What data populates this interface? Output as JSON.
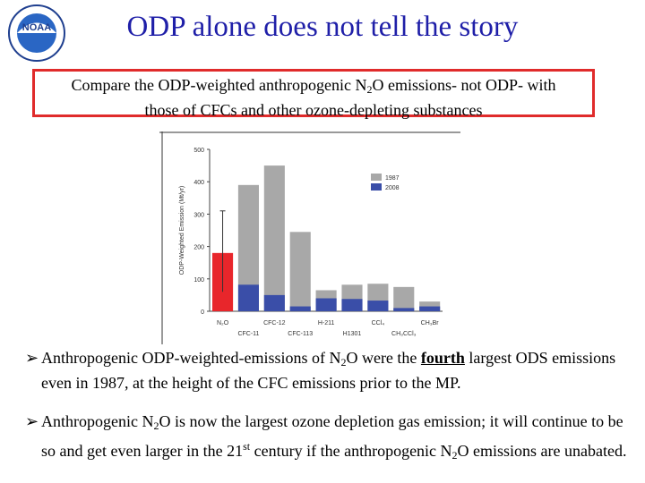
{
  "logo": {
    "text": "NOAA"
  },
  "title": "ODP alone does not tell the story",
  "callout": {
    "part1": "Compare the ODP-weighted anthropogenic N",
    "sub": "2",
    "part2": "O emissions- not ODP- with",
    "line2": "those of CFCs and other ozone-depleting substances"
  },
  "bullets": [
    {
      "a": "Anthropogenic ODP-weighted-emissions of N",
      "sub": "2",
      "b": "O were the ",
      "emph": "fourth",
      "c": " largest ODS emissions even in 1987, at the height of the CFC emissions prior to the MP."
    },
    {
      "a": "Anthropogenic N",
      "sub": "2",
      "b": "O is now the largest ozone depletion gas emission; it will continue to be so and get even  larger in the 21",
      "sup": "st",
      "c": " century if the anthropogenic N",
      "sub2": "2",
      "d": "O emissions are unabated."
    }
  ],
  "colors": {
    "title": "#1f1fa8",
    "callout_border": "#e02b2b",
    "n2o": "#e8262b",
    "y1987": "#a8a8a8",
    "y2008": "#3a4ea8"
  },
  "chart_data": {
    "type": "bar",
    "ylabel": "ODP-Weighted Emission (Mt/yr)",
    "ylim": [
      0,
      500
    ],
    "yticks": [
      0,
      100,
      200,
      300,
      400,
      500
    ],
    "categories": [
      "N2O",
      "CFC-11",
      "CFC-12",
      "CFC-113",
      "H-211",
      "H1301",
      "CCl4",
      "CH3CCl3",
      "CH3Br"
    ],
    "x_tick_labels": [
      {
        "cat": "N2O",
        "text": "N₂O",
        "row": 1
      },
      {
        "cat": "CFC-11",
        "text": "CFC-11",
        "row": 2
      },
      {
        "cat": "CFC-12",
        "text": "CFC-12",
        "row": 1
      },
      {
        "cat": "CFC-113",
        "text": "CFC-113",
        "row": 2
      },
      {
        "cat": "H-211",
        "text": "H-211",
        "row": 1
      },
      {
        "cat": "H1301",
        "text": "H1301",
        "row": 2
      },
      {
        "cat": "CCl4",
        "text": "CCl₄",
        "row": 1
      },
      {
        "cat": "CH3CCl3",
        "text": "CH₃CCl₃",
        "row": 2
      },
      {
        "cat": "CH3Br",
        "text": "CH₃Br",
        "row": 1
      }
    ],
    "series": [
      {
        "name": "1987",
        "values": [
          null,
          390,
          450,
          245,
          65,
          82,
          85,
          75,
          30
        ]
      },
      {
        "name": "2008",
        "values": [
          180,
          82,
          50,
          15,
          40,
          38,
          33,
          10,
          15
        ]
      }
    ],
    "n2o": {
      "value": 180,
      "range": [
        60,
        310
      ]
    },
    "legend": {
      "position": "top-right",
      "entries": [
        "1987",
        "2008"
      ]
    }
  }
}
